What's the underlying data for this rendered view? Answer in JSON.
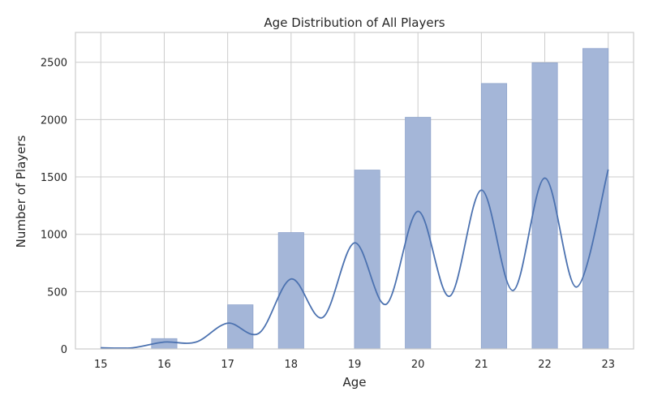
{
  "chart_data": {
    "type": "bar",
    "title": "Age Distribution of All Players",
    "xlabel": "Age",
    "ylabel": "Number of Players",
    "xlim": [
      14.6,
      23.4
    ],
    "ylim": [
      0,
      2760
    ],
    "xticks": [
      15,
      16,
      17,
      18,
      19,
      20,
      21,
      22,
      23
    ],
    "yticks": [
      0,
      500,
      1000,
      1500,
      2000,
      2500
    ],
    "grid": true,
    "bars": [
      {
        "x0": 15.0,
        "x1": 15.4,
        "value": 10
      },
      {
        "x0": 15.8,
        "x1": 16.2,
        "value": 90
      },
      {
        "x0": 17.0,
        "x1": 17.4,
        "value": 385
      },
      {
        "x0": 17.8,
        "x1": 18.2,
        "value": 1015
      },
      {
        "x0": 19.0,
        "x1": 19.4,
        "value": 1560
      },
      {
        "x0": 19.8,
        "x1": 20.2,
        "value": 2020
      },
      {
        "x0": 21.0,
        "x1": 21.4,
        "value": 2315
      },
      {
        "x0": 21.8,
        "x1": 22.2,
        "value": 2495
      },
      {
        "x0": 22.6,
        "x1": 23.0,
        "value": 2620
      }
    ],
    "kde": {
      "x": [
        15.0,
        15.5,
        16.0,
        16.5,
        17.0,
        17.5,
        18.0,
        18.5,
        19.0,
        19.5,
        20.0,
        20.5,
        21.0,
        21.5,
        22.0,
        22.5,
        23.0
      ],
      "y": [
        10,
        10,
        60,
        60,
        225,
        140,
        610,
        275,
        925,
        390,
        1200,
        460,
        1385,
        510,
        1490,
        540,
        1565
      ]
    },
    "colors": {
      "bar_fill": "#a4b6d8",
      "bar_stroke": "#8fa4cc",
      "kde_line": "#4c72b0",
      "grid": "#cccccc",
      "axes_edge": "#cccccc"
    }
  }
}
